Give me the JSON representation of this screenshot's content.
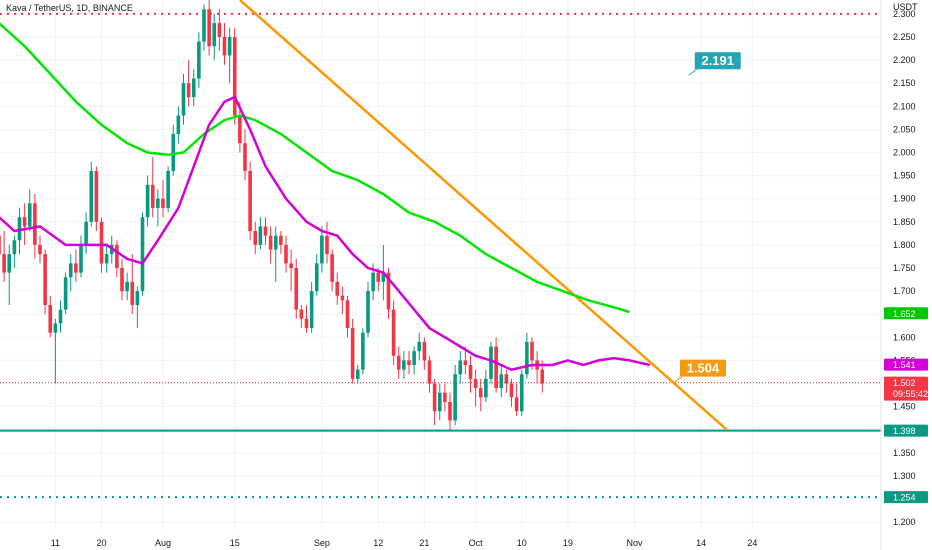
{
  "header": {
    "symbol": "Kava / TetherUS, 1D, BINANCE"
  },
  "chart_data": {
    "type": "candlestick",
    "currency": "USDT",
    "ylim": [
      1.17,
      2.33
    ],
    "y_ticks": [
      1.2,
      1.25,
      1.3,
      1.35,
      1.4,
      1.45,
      1.5,
      1.55,
      1.6,
      1.65,
      1.7,
      1.75,
      1.8,
      1.85,
      1.9,
      1.95,
      2.0,
      2.05,
      2.1,
      2.15,
      2.2,
      2.25,
      2.3
    ],
    "y_tick_labels": [
      "1.200",
      "1.250",
      "1.300",
      "1.350",
      "1.400",
      "1.450",
      "1.500",
      "1.550",
      "1.600",
      "1.650",
      "1.700",
      "1.750",
      "1.800",
      "1.850",
      "1.900",
      "1.950",
      "2.000",
      "2.050",
      "2.100",
      "2.150",
      "2.200",
      "2.250",
      "2.300"
    ],
    "x_tick_labels": [
      {
        "label": "11",
        "day": 11
      },
      {
        "label": "20",
        "day": 20
      },
      {
        "label": "Aug",
        "day": 32
      },
      {
        "label": "15",
        "day": 46
      },
      {
        "label": "Sep",
        "day": 63
      },
      {
        "label": "12",
        "day": 74
      },
      {
        "label": "21",
        "day": 83
      },
      {
        "label": "Oct",
        "day": 93
      },
      {
        "label": "10",
        "day": 102
      },
      {
        "label": "19",
        "day": 111
      },
      {
        "label": "Nov",
        "day": 124
      },
      {
        "label": "14",
        "day": 137
      },
      {
        "label": "24",
        "day": 147
      }
    ],
    "candles": [
      [
        1.82,
        1.84,
        1.76,
        1.78
      ],
      [
        1.78,
        1.83,
        1.72,
        1.74
      ],
      [
        1.74,
        1.8,
        1.67,
        1.78
      ],
      [
        1.78,
        1.82,
        1.75,
        1.81
      ],
      [
        1.81,
        1.88,
        1.78,
        1.86
      ],
      [
        1.86,
        1.89,
        1.8,
        1.84
      ],
      [
        1.84,
        1.92,
        1.83,
        1.89
      ],
      [
        1.89,
        1.91,
        1.77,
        1.8
      ],
      [
        1.8,
        1.82,
        1.76,
        1.78
      ],
      [
        1.78,
        1.79,
        1.65,
        1.67
      ],
      [
        1.67,
        1.69,
        1.6,
        1.61
      ],
      [
        1.61,
        1.64,
        1.5,
        1.63
      ],
      [
        1.63,
        1.68,
        1.61,
        1.66
      ],
      [
        1.66,
        1.74,
        1.65,
        1.73
      ],
      [
        1.73,
        1.78,
        1.7,
        1.76
      ],
      [
        1.76,
        1.79,
        1.72,
        1.74
      ],
      [
        1.74,
        1.82,
        1.73,
        1.8
      ],
      [
        1.8,
        1.87,
        1.78,
        1.85
      ],
      [
        1.85,
        1.98,
        1.84,
        1.96
      ],
      [
        1.96,
        1.97,
        1.83,
        1.85
      ],
      [
        1.85,
        1.86,
        1.74,
        1.76
      ],
      [
        1.76,
        1.8,
        1.74,
        1.78
      ],
      [
        1.78,
        1.82,
        1.76,
        1.8
      ],
      [
        1.8,
        1.81,
        1.73,
        1.75
      ],
      [
        1.75,
        1.77,
        1.68,
        1.7
      ],
      [
        1.7,
        1.74,
        1.68,
        1.72
      ],
      [
        1.72,
        1.78,
        1.65,
        1.67
      ],
      [
        1.67,
        1.71,
        1.62,
        1.7
      ],
      [
        1.7,
        1.87,
        1.69,
        1.86
      ],
      [
        1.86,
        1.95,
        1.84,
        1.93
      ],
      [
        1.93,
        1.99,
        1.86,
        1.88
      ],
      [
        1.88,
        1.92,
        1.84,
        1.9
      ],
      [
        1.9,
        1.94,
        1.86,
        1.88
      ],
      [
        1.88,
        1.97,
        1.87,
        1.96
      ],
      [
        1.96,
        2.06,
        1.95,
        2.04
      ],
      [
        2.04,
        2.1,
        2.02,
        2.08
      ],
      [
        2.08,
        2.17,
        2.06,
        2.15
      ],
      [
        2.15,
        2.2,
        2.1,
        2.12
      ],
      [
        2.12,
        2.18,
        2.1,
        2.16
      ],
      [
        2.16,
        2.26,
        2.14,
        2.24
      ],
      [
        2.24,
        2.32,
        2.22,
        2.31
      ],
      [
        2.31,
        2.33,
        2.21,
        2.23
      ],
      [
        2.23,
        2.3,
        2.2,
        2.28
      ],
      [
        2.28,
        2.31,
        2.22,
        2.25
      ],
      [
        2.25,
        2.28,
        2.19,
        2.21
      ],
      [
        2.21,
        2.27,
        2.15,
        2.25
      ],
      [
        2.25,
        2.27,
        2.06,
        2.08
      ],
      [
        2.08,
        2.11,
        2.0,
        2.02
      ],
      [
        2.02,
        2.05,
        1.94,
        1.96
      ],
      [
        1.96,
        1.98,
        1.81,
        1.83
      ],
      [
        1.83,
        1.85,
        1.78,
        1.8
      ],
      [
        1.8,
        1.86,
        1.79,
        1.84
      ],
      [
        1.84,
        1.86,
        1.8,
        1.82
      ],
      [
        1.82,
        1.84,
        1.76,
        1.79
      ],
      [
        1.79,
        1.84,
        1.72,
        1.82
      ],
      [
        1.82,
        1.83,
        1.78,
        1.8
      ],
      [
        1.8,
        1.82,
        1.74,
        1.76
      ],
      [
        1.76,
        1.79,
        1.7,
        1.75
      ],
      [
        1.75,
        1.77,
        1.64,
        1.66
      ],
      [
        1.66,
        1.67,
        1.62,
        1.64
      ],
      [
        1.64,
        1.67,
        1.61,
        1.62
      ],
      [
        1.62,
        1.72,
        1.61,
        1.7
      ],
      [
        1.7,
        1.78,
        1.69,
        1.76
      ],
      [
        1.76,
        1.84,
        1.74,
        1.82
      ],
      [
        1.82,
        1.85,
        1.76,
        1.78
      ],
      [
        1.78,
        1.79,
        1.7,
        1.72
      ],
      [
        1.72,
        1.74,
        1.67,
        1.69
      ],
      [
        1.69,
        1.71,
        1.65,
        1.68
      ],
      [
        1.68,
        1.69,
        1.6,
        1.62
      ],
      [
        1.62,
        1.64,
        1.5,
        1.51
      ],
      [
        1.51,
        1.54,
        1.5,
        1.53
      ],
      [
        1.53,
        1.62,
        1.52,
        1.61
      ],
      [
        1.61,
        1.72,
        1.6,
        1.7
      ],
      [
        1.7,
        1.76,
        1.68,
        1.74
      ],
      [
        1.74,
        1.75,
        1.7,
        1.72
      ],
      [
        1.72,
        1.8,
        1.68,
        1.74
      ],
      [
        1.74,
        1.75,
        1.64,
        1.66
      ],
      [
        1.66,
        1.68,
        1.54,
        1.56
      ],
      [
        1.56,
        1.58,
        1.51,
        1.53
      ],
      [
        1.53,
        1.57,
        1.51,
        1.55
      ],
      [
        1.55,
        1.57,
        1.52,
        1.54
      ],
      [
        1.54,
        1.58,
        1.52,
        1.57
      ],
      [
        1.57,
        1.61,
        1.55,
        1.59
      ],
      [
        1.59,
        1.6,
        1.53,
        1.55
      ],
      [
        1.55,
        1.56,
        1.48,
        1.5
      ],
      [
        1.5,
        1.51,
        1.41,
        1.44
      ],
      [
        1.44,
        1.5,
        1.42,
        1.48
      ],
      [
        1.48,
        1.5,
        1.44,
        1.46
      ],
      [
        1.46,
        1.48,
        1.4,
        1.42
      ],
      [
        1.42,
        1.54,
        1.41,
        1.52
      ],
      [
        1.52,
        1.57,
        1.5,
        1.55
      ],
      [
        1.55,
        1.58,
        1.52,
        1.54
      ],
      [
        1.54,
        1.56,
        1.48,
        1.51
      ],
      [
        1.51,
        1.53,
        1.45,
        1.49
      ],
      [
        1.49,
        1.51,
        1.44,
        1.47
      ],
      [
        1.47,
        1.53,
        1.46,
        1.51
      ],
      [
        1.51,
        1.59,
        1.5,
        1.58
      ],
      [
        1.58,
        1.6,
        1.48,
        1.49
      ],
      [
        1.49,
        1.54,
        1.47,
        1.52
      ],
      [
        1.52,
        1.53,
        1.48,
        1.5
      ],
      [
        1.5,
        1.51,
        1.45,
        1.47
      ],
      [
        1.47,
        1.5,
        1.43,
        1.44
      ],
      [
        1.44,
        1.53,
        1.43,
        1.52
      ],
      [
        1.52,
        1.61,
        1.51,
        1.59
      ],
      [
        1.59,
        1.6,
        1.53,
        1.55
      ],
      [
        1.55,
        1.57,
        1.5,
        1.53
      ],
      [
        1.53,
        1.55,
        1.48,
        1.5
      ]
    ],
    "ma_magenta": [
      [
        0,
        1.86
      ],
      [
        3,
        1.83
      ],
      [
        8,
        1.84
      ],
      [
        13,
        1.8
      ],
      [
        17,
        1.8
      ],
      [
        21,
        1.8
      ],
      [
        25,
        1.77
      ],
      [
        28,
        1.76
      ],
      [
        31,
        1.81
      ],
      [
        35,
        1.88
      ],
      [
        38,
        1.97
      ],
      [
        41,
        2.06
      ],
      [
        44,
        2.11
      ],
      [
        46,
        2.12
      ],
      [
        49,
        2.05
      ],
      [
        52,
        1.97
      ],
      [
        56,
        1.9
      ],
      [
        60,
        1.85
      ],
      [
        63,
        1.83
      ],
      [
        66,
        1.82
      ],
      [
        69,
        1.78
      ],
      [
        72,
        1.75
      ],
      [
        75,
        1.74
      ],
      [
        78,
        1.7
      ],
      [
        81,
        1.66
      ],
      [
        84,
        1.62
      ],
      [
        87,
        1.6
      ],
      [
        90,
        1.58
      ],
      [
        93,
        1.56
      ],
      [
        96,
        1.55
      ],
      [
        100,
        1.53
      ],
      [
        104,
        1.54
      ],
      [
        108,
        1.54
      ],
      [
        111,
        1.55
      ],
      [
        114,
        1.54
      ],
      [
        117,
        1.55
      ],
      [
        120,
        1.555
      ],
      [
        123,
        1.55
      ],
      [
        125,
        1.545
      ],
      [
        127,
        1.54
      ]
    ],
    "ma_green": [
      [
        0,
        2.28
      ],
      [
        5,
        2.23
      ],
      [
        10,
        2.17
      ],
      [
        15,
        2.11
      ],
      [
        20,
        2.06
      ],
      [
        25,
        2.02
      ],
      [
        29,
        2.0
      ],
      [
        33,
        1.995
      ],
      [
        36,
        2.0
      ],
      [
        40,
        2.04
      ],
      [
        44,
        2.07
      ],
      [
        47,
        2.08
      ],
      [
        50,
        2.07
      ],
      [
        55,
        2.04
      ],
      [
        60,
        2.0
      ],
      [
        65,
        1.96
      ],
      [
        70,
        1.94
      ],
      [
        75,
        1.91
      ],
      [
        80,
        1.87
      ],
      [
        85,
        1.85
      ],
      [
        90,
        1.82
      ],
      [
        95,
        1.78
      ],
      [
        100,
        1.75
      ],
      [
        105,
        1.72
      ],
      [
        110,
        1.7
      ],
      [
        115,
        1.68
      ],
      [
        120,
        1.665
      ],
      [
        123,
        1.655
      ]
    ],
    "trendline": {
      "x1": 47,
      "y1": 2.33,
      "x2": 142,
      "y2": 1.4
    },
    "level_lines": [
      {
        "value": 2.3,
        "label": "2.300",
        "style": "dotted",
        "color": "#f23645"
      },
      {
        "value": 1.398,
        "label": "1.398",
        "style": "solid",
        "color": "#089981"
      },
      {
        "value": 1.254,
        "label": "1.254",
        "style": "dotted",
        "color": "#089981"
      }
    ],
    "price_badges": [
      {
        "label": "1.652",
        "value": 1.652,
        "color": "#00c800"
      },
      {
        "label": "1.541",
        "value": 1.541,
        "color": "#d500d5"
      },
      {
        "label": "1.502",
        "value": 1.502,
        "color": "#f23645",
        "countdown": "09:55:42"
      }
    ],
    "current_price": 1.502,
    "callouts": [
      {
        "text": "2.191",
        "color": "#22a6b3",
        "value": 2.191,
        "day": 142
      },
      {
        "text": "1.504",
        "color": "#f39c12",
        "value": 1.504,
        "day": 136
      }
    ],
    "colors": {
      "up": "#089981",
      "down": "#f23645",
      "ma_fast": "#d500d5",
      "ma_slow": "#00e600",
      "trendline": "#ff9800",
      "grid": "#f0f3fa"
    },
    "grid": true
  }
}
